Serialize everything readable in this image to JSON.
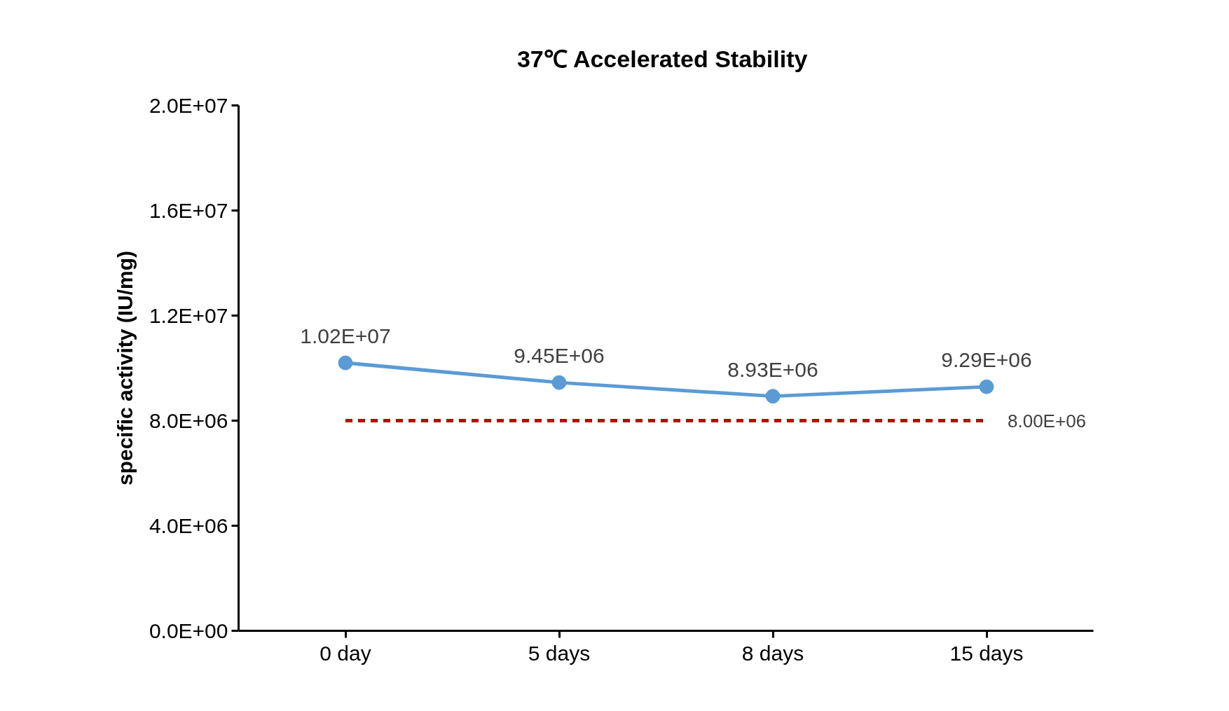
{
  "chart_data": {
    "type": "line",
    "title": "37℃ Accelerated  Stability",
    "ylabel": "specific activity (IU/mg)",
    "categories": [
      "0 day",
      "5 days",
      "8 days",
      "15 days"
    ],
    "ylim": [
      0,
      20000000
    ],
    "yticks": [
      {
        "value": 0,
        "label": "0.0E+00"
      },
      {
        "value": 4000000,
        "label": "4.0E+06"
      },
      {
        "value": 8000000,
        "label": "8.0E+06"
      },
      {
        "value": 12000000,
        "label": "1.2E+07"
      },
      {
        "value": 16000000,
        "label": "1.6E+07"
      },
      {
        "value": 20000000,
        "label": "2.0E+07"
      }
    ],
    "grid": false,
    "series": [
      {
        "color": "#5b9bd5",
        "values": [
          10200000,
          9450000,
          8930000,
          9290000
        ],
        "value_labels": [
          "1.02E+07",
          "9.45E+06",
          "8.93E+06",
          "9.29E+06"
        ],
        "marker": "circle",
        "line_style": "solid"
      },
      {
        "color": "#c00000",
        "values": [
          8000000,
          8000000,
          8000000,
          8000000
        ],
        "value_labels": [
          null,
          null,
          null,
          "8.00E+06"
        ],
        "marker": "none",
        "line_style": "dashed"
      }
    ]
  }
}
